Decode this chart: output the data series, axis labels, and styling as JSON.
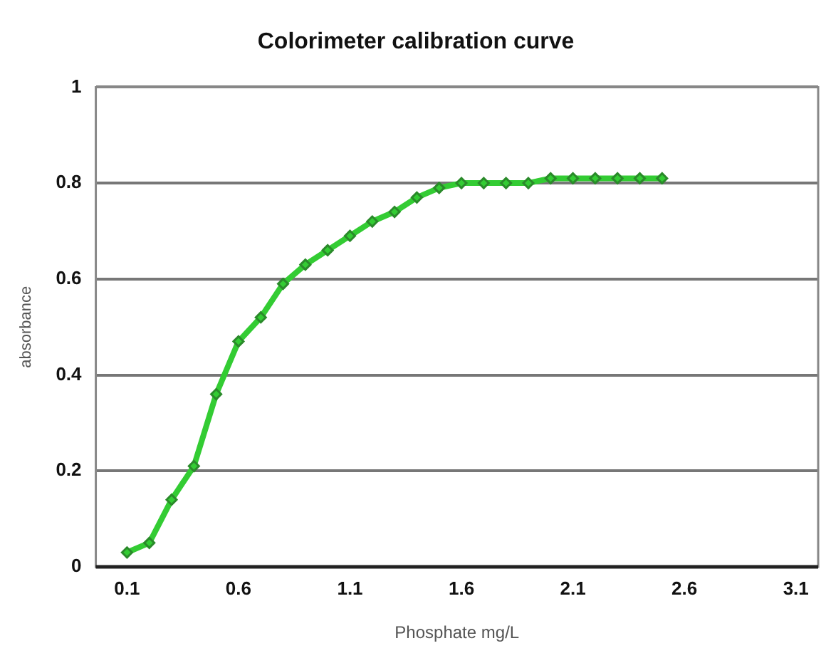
{
  "chart_data": {
    "type": "line",
    "title": "Colorimeter calibration curve",
    "xlabel": "Phosphate mg/L",
    "ylabel": "absorbance",
    "x": [
      0.1,
      0.2,
      0.3,
      0.4,
      0.5,
      0.6,
      0.7,
      0.8,
      0.9,
      1.0,
      1.1,
      1.2,
      1.3,
      1.4,
      1.5,
      1.6,
      1.7,
      1.8,
      1.9,
      2.0,
      2.1,
      2.2,
      2.3,
      2.4,
      2.5
    ],
    "series": [
      {
        "color": "#33cc33",
        "values": [
          0.03,
          0.05,
          0.14,
          0.21,
          0.36,
          0.47,
          0.52,
          0.59,
          0.63,
          0.66,
          0.69,
          0.72,
          0.74,
          0.77,
          0.79,
          0.8,
          0.8,
          0.8,
          0.8,
          0.81,
          0.81,
          0.81,
          0.81,
          0.81,
          0.81
        ]
      }
    ],
    "xlim": [
      -0.04,
      3.2
    ],
    "xticks": [
      0.1,
      0.6,
      1.1,
      1.6,
      2.1,
      2.6,
      3.1
    ],
    "ylim": [
      0,
      1
    ],
    "yticks": [
      0,
      0.2,
      0.4,
      0.6,
      0.8,
      1
    ],
    "grid": "y",
    "legend": false,
    "marker": "diamond",
    "line_style": "solid"
  }
}
